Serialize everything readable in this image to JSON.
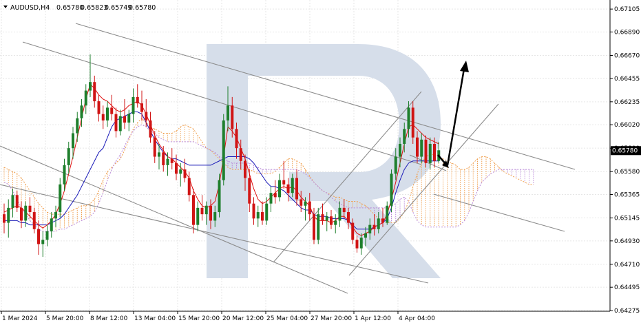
{
  "header": {
    "symbol": "AUDUSD,H4",
    "open": "0.65780",
    "high": "0.65823",
    "low": "0.65749",
    "close": "0.65780",
    "arrow_icon": "triangle-down-icon"
  },
  "colors": {
    "bull_candle": "#1e7f2c",
    "bear_candle": "#d01414",
    "tenkan": "#e01010",
    "kijun": "#1a1ab8",
    "cloud_bull": "#f0a050",
    "cloud_bear": "#b888d8",
    "trendline": "#8c8c8c",
    "forecast_arrow": "#000000",
    "price_tag_bg": "#000000",
    "watermark": "#d6deea"
  },
  "chart_data": {
    "type": "candlestick",
    "timeframe": "H4",
    "ylim": [
      0.6427,
      0.6719
    ],
    "y_ticks": [
      "0.67105",
      "0.66890",
      "0.66670",
      "0.66455",
      "0.66235",
      "0.66020",
      "0.65800",
      "0.65580",
      "0.65365",
      "0.65145",
      "0.64930",
      "0.64710",
      "0.64495",
      "0.64275"
    ],
    "x_ticks": [
      "1 Mar 2024",
      "5 Mar 20:00",
      "8 Mar 12:00",
      "13 Mar 04:00",
      "15 Mar 20:00",
      "20 Mar 12:00",
      "25 Mar 04:00",
      "27 Mar 20:00",
      "1 Apr 12:00",
      "4 Apr 04:00"
    ],
    "current_price": "0.65780",
    "grid": true,
    "candles": [
      [
        0.6518,
        0.6528,
        0.65,
        0.651
      ],
      [
        0.651,
        0.6532,
        0.6496,
        0.6524
      ],
      [
        0.6524,
        0.6542,
        0.6515,
        0.6536
      ],
      [
        0.6536,
        0.654,
        0.652,
        0.6524
      ],
      [
        0.6524,
        0.653,
        0.6505,
        0.6512
      ],
      [
        0.6512,
        0.653,
        0.6506,
        0.6526
      ],
      [
        0.6526,
        0.6534,
        0.6514,
        0.652
      ],
      [
        0.652,
        0.6524,
        0.65,
        0.6504
      ],
      [
        0.6504,
        0.6512,
        0.648,
        0.649
      ],
      [
        0.649,
        0.6502,
        0.6478,
        0.6494
      ],
      [
        0.6494,
        0.6508,
        0.6488,
        0.6502
      ],
      [
        0.6502,
        0.652,
        0.6496,
        0.6514
      ],
      [
        0.6514,
        0.6526,
        0.6506,
        0.652
      ],
      [
        0.652,
        0.6552,
        0.6515,
        0.6546
      ],
      [
        0.6546,
        0.657,
        0.654,
        0.6564
      ],
      [
        0.6564,
        0.6586,
        0.6556,
        0.658
      ],
      [
        0.658,
        0.66,
        0.657,
        0.6594
      ],
      [
        0.6594,
        0.6614,
        0.6586,
        0.6608
      ],
      [
        0.6608,
        0.6626,
        0.66,
        0.662
      ],
      [
        0.662,
        0.664,
        0.6612,
        0.6634
      ],
      [
        0.6634,
        0.6668,
        0.6628,
        0.6642
      ],
      [
        0.6642,
        0.6648,
        0.6618,
        0.6624
      ],
      [
        0.6624,
        0.663,
        0.6605,
        0.6612
      ],
      [
        0.6612,
        0.662,
        0.6598,
        0.6606
      ],
      [
        0.6606,
        0.6624,
        0.66,
        0.6618
      ],
      [
        0.6618,
        0.663,
        0.6606,
        0.6612
      ],
      [
        0.6612,
        0.6618,
        0.659,
        0.6596
      ],
      [
        0.6596,
        0.6616,
        0.6592,
        0.661
      ],
      [
        0.661,
        0.6626,
        0.6598,
        0.6604
      ],
      [
        0.6604,
        0.6616,
        0.6596,
        0.6612
      ],
      [
        0.6612,
        0.6636,
        0.6604,
        0.6628
      ],
      [
        0.6628,
        0.664,
        0.6618,
        0.6622
      ],
      [
        0.6622,
        0.6634,
        0.6606,
        0.6614
      ],
      [
        0.6614,
        0.6626,
        0.66,
        0.6606
      ],
      [
        0.6606,
        0.6614,
        0.6585,
        0.659
      ],
      [
        0.659,
        0.6596,
        0.6566,
        0.6572
      ],
      [
        0.6572,
        0.6584,
        0.656,
        0.6576
      ],
      [
        0.6576,
        0.6582,
        0.6558,
        0.6564
      ],
      [
        0.6564,
        0.6576,
        0.6554,
        0.657
      ],
      [
        0.657,
        0.658,
        0.656,
        0.6566
      ],
      [
        0.6566,
        0.6574,
        0.655,
        0.6556
      ],
      [
        0.6556,
        0.6566,
        0.6544,
        0.656
      ],
      [
        0.656,
        0.657,
        0.6548,
        0.6552
      ],
      [
        0.6552,
        0.6558,
        0.653,
        0.6536
      ],
      [
        0.6536,
        0.6542,
        0.65,
        0.6508
      ],
      [
        0.6508,
        0.653,
        0.6502,
        0.6524
      ],
      [
        0.6524,
        0.6536,
        0.6512,
        0.6518
      ],
      [
        0.6518,
        0.653,
        0.6508,
        0.6526
      ],
      [
        0.6526,
        0.6532,
        0.6504,
        0.6512
      ],
      [
        0.6512,
        0.6526,
        0.6506,
        0.652
      ],
      [
        0.652,
        0.6556,
        0.6515,
        0.655
      ],
      [
        0.655,
        0.6612,
        0.6545,
        0.6606
      ],
      [
        0.6606,
        0.6638,
        0.6596,
        0.662
      ],
      [
        0.662,
        0.6628,
        0.659,
        0.6598
      ],
      [
        0.6598,
        0.6604,
        0.657,
        0.658
      ],
      [
        0.658,
        0.6588,
        0.656,
        0.6568
      ],
      [
        0.6568,
        0.6574,
        0.654,
        0.6552
      ],
      [
        0.6552,
        0.656,
        0.652,
        0.6528
      ],
      [
        0.6528,
        0.6534,
        0.6508,
        0.6514
      ],
      [
        0.6514,
        0.6526,
        0.6506,
        0.652
      ],
      [
        0.652,
        0.653,
        0.6508,
        0.6512
      ],
      [
        0.6512,
        0.6534,
        0.6508,
        0.6528
      ],
      [
        0.6528,
        0.6544,
        0.652,
        0.6538
      ],
      [
        0.6538,
        0.655,
        0.6528,
        0.6534
      ],
      [
        0.6534,
        0.6556,
        0.653,
        0.655
      ],
      [
        0.655,
        0.6568,
        0.6542,
        0.6546
      ],
      [
        0.6546,
        0.6552,
        0.653,
        0.6538
      ],
      [
        0.6538,
        0.6556,
        0.6534,
        0.6552
      ],
      [
        0.6552,
        0.656,
        0.6526,
        0.6532
      ],
      [
        0.6532,
        0.654,
        0.652,
        0.6526
      ],
      [
        0.6526,
        0.6534,
        0.6512,
        0.653
      ],
      [
        0.653,
        0.6538,
        0.6512,
        0.6518
      ],
      [
        0.6518,
        0.6524,
        0.649,
        0.6494
      ],
      [
        0.6494,
        0.6524,
        0.649,
        0.6518
      ],
      [
        0.6518,
        0.6528,
        0.6508,
        0.6512
      ],
      [
        0.6512,
        0.652,
        0.6502,
        0.6516
      ],
      [
        0.6516,
        0.6522,
        0.6504,
        0.6508
      ],
      [
        0.6508,
        0.6518,
        0.65,
        0.6512
      ],
      [
        0.6512,
        0.653,
        0.6506,
        0.6524
      ],
      [
        0.6524,
        0.6532,
        0.6514,
        0.652
      ],
      [
        0.652,
        0.6524,
        0.6504,
        0.651
      ],
      [
        0.651,
        0.6514,
        0.649,
        0.6494
      ],
      [
        0.6494,
        0.6498,
        0.6482,
        0.6486
      ],
      [
        0.6486,
        0.65,
        0.648,
        0.6496
      ],
      [
        0.6496,
        0.6506,
        0.6488,
        0.65
      ],
      [
        0.65,
        0.6514,
        0.6494,
        0.6508
      ],
      [
        0.6508,
        0.6518,
        0.6498,
        0.6504
      ],
      [
        0.6504,
        0.652,
        0.65,
        0.6514
      ],
      [
        0.6514,
        0.6524,
        0.6506,
        0.651
      ],
      [
        0.651,
        0.653,
        0.6508,
        0.6526
      ],
      [
        0.6526,
        0.656,
        0.652,
        0.6556
      ],
      [
        0.6556,
        0.658,
        0.655,
        0.6572
      ],
      [
        0.6572,
        0.659,
        0.6562,
        0.6584
      ],
      [
        0.6584,
        0.6604,
        0.6576,
        0.6598
      ],
      [
        0.6598,
        0.6624,
        0.659,
        0.6618
      ],
      [
        0.6618,
        0.6624,
        0.6584,
        0.659
      ],
      [
        0.659,
        0.6596,
        0.6566,
        0.6572
      ],
      [
        0.6572,
        0.6594,
        0.6566,
        0.6588
      ],
      [
        0.6588,
        0.6592,
        0.6562,
        0.6566
      ],
      [
        0.6566,
        0.659,
        0.656,
        0.6584
      ],
      [
        0.6584,
        0.659,
        0.6562,
        0.6568
      ],
      [
        0.6568,
        0.6586,
        0.6566,
        0.6578
      ]
    ],
    "tenkan": [
      0.652,
      0.6522,
      0.6524,
      0.6526,
      0.6524,
      0.652,
      0.6516,
      0.6512,
      0.6508,
      0.6505,
      0.6508,
      0.6512,
      0.6518,
      0.6528,
      0.654,
      0.6556,
      0.6572,
      0.659,
      0.6608,
      0.6626,
      0.664,
      0.6636,
      0.663,
      0.6626,
      0.6624,
      0.662,
      0.6616,
      0.6614,
      0.6616,
      0.662,
      0.6622,
      0.6624,
      0.662,
      0.6612,
      0.6602,
      0.6592,
      0.6584,
      0.6578,
      0.6572,
      0.657,
      0.6566,
      0.6562,
      0.6558,
      0.6552,
      0.654,
      0.6532,
      0.6526,
      0.6524,
      0.6526,
      0.653,
      0.6546,
      0.6572,
      0.66,
      0.6596,
      0.659,
      0.658,
      0.657,
      0.6556,
      0.6542,
      0.6532,
      0.6528,
      0.653,
      0.6534,
      0.6538,
      0.6542,
      0.6544,
      0.6542,
      0.6544,
      0.654,
      0.6534,
      0.653,
      0.6526,
      0.6516,
      0.6512,
      0.6512,
      0.6512,
      0.651,
      0.6512,
      0.6516,
      0.6516,
      0.6512,
      0.6506,
      0.65,
      0.6498,
      0.65,
      0.6502,
      0.6506,
      0.6508,
      0.651,
      0.6518,
      0.6532,
      0.6548,
      0.6566,
      0.6584,
      0.66,
      0.6602,
      0.6598,
      0.6594,
      0.659,
      0.6588,
      0.6586,
      0.6584
    ],
    "kijun": [
      0.6512,
      0.6512,
      0.6512,
      0.6512,
      0.651,
      0.651,
      0.6508,
      0.6508,
      0.6508,
      0.6508,
      0.6508,
      0.651,
      0.6512,
      0.6514,
      0.6518,
      0.6524,
      0.653,
      0.6536,
      0.6544,
      0.6552,
      0.656,
      0.6568,
      0.6576,
      0.658,
      0.659,
      0.66,
      0.6606,
      0.6608,
      0.661,
      0.6612,
      0.6614,
      0.6614,
      0.6612,
      0.6604,
      0.6596,
      0.6588,
      0.6582,
      0.6576,
      0.6572,
      0.657,
      0.657,
      0.6568,
      0.6566,
      0.6564,
      0.6564,
      0.6564,
      0.6564,
      0.6564,
      0.6564,
      0.6566,
      0.6568,
      0.657,
      0.6572,
      0.6572,
      0.6572,
      0.6572,
      0.6572,
      0.657,
      0.6566,
      0.656,
      0.6554,
      0.6548,
      0.6544,
      0.6544,
      0.6542,
      0.654,
      0.6536,
      0.6532,
      0.6528,
      0.6524,
      0.6522,
      0.6522,
      0.6518,
      0.6516,
      0.6516,
      0.6516,
      0.6514,
      0.6514,
      0.6514,
      0.6514,
      0.6512,
      0.6508,
      0.6504,
      0.6504,
      0.6504,
      0.6504,
      0.6506,
      0.6508,
      0.651,
      0.6514,
      0.6524,
      0.6538,
      0.655,
      0.656,
      0.6566,
      0.6568,
      0.6568,
      0.6568,
      0.6568,
      0.6568,
      0.6568,
      0.6568
    ],
    "cloud_spanA": [
      0.6562,
      0.656,
      0.6558,
      0.6556,
      0.6552,
      0.6546,
      0.654,
      0.6534,
      0.6528,
      0.6524,
      0.652,
      0.6518,
      0.6518,
      0.6518,
      0.6518,
      0.652,
      0.6522,
      0.6524,
      0.6526,
      0.6526,
      0.6528,
      0.6532,
      0.654,
      0.655,
      0.6558,
      0.6562,
      0.6566,
      0.657,
      0.6578,
      0.6588,
      0.6598,
      0.6604,
      0.6608,
      0.6604,
      0.66,
      0.6598,
      0.6596,
      0.6594,
      0.6594,
      0.6594,
      0.6596,
      0.66,
      0.6602,
      0.66,
      0.6598,
      0.6592,
      0.6586,
      0.658,
      0.6578,
      0.6574,
      0.657,
      0.6566,
      0.6562,
      0.656,
      0.656,
      0.656,
      0.656,
      0.656,
      0.6558,
      0.6556,
      0.6556,
      0.6556,
      0.6556,
      0.6558,
      0.6562,
      0.6566,
      0.657,
      0.657,
      0.6568,
      0.6566,
      0.656,
      0.6554,
      0.6548,
      0.6544,
      0.654,
      0.6538,
      0.6536,
      0.6534,
      0.6534,
      0.6532,
      0.653,
      0.653,
      0.653,
      0.6528,
      0.6526,
      0.6522,
      0.6518,
      0.6514,
      0.6512,
      0.651,
      0.651,
      0.651,
      0.6514,
      0.652,
      0.653,
      0.6544,
      0.6556,
      0.6566,
      0.6572,
      0.6574,
      0.6574,
      0.6572,
      0.657,
      0.6568,
      0.6566,
      0.6564,
      0.656,
      0.656,
      0.6562,
      0.6566,
      0.657,
      0.6572,
      0.6572,
      0.657,
      0.6566,
      0.6562,
      0.6558,
      0.6556,
      0.6554,
      0.6552,
      0.655,
      0.6548,
      0.6546,
      0.6546
    ],
    "cloud_spanB": [
      0.6548,
      0.6546,
      0.654,
      0.6532,
      0.6524,
      0.6518,
      0.6512,
      0.6508,
      0.6504,
      0.6502,
      0.6502,
      0.6502,
      0.6502,
      0.6504,
      0.6504,
      0.6506,
      0.6508,
      0.651,
      0.6512,
      0.6514,
      0.6516,
      0.652,
      0.6528,
      0.6538,
      0.655,
      0.656,
      0.6568,
      0.6574,
      0.6582,
      0.659,
      0.6596,
      0.66,
      0.6602,
      0.66,
      0.6596,
      0.6594,
      0.659,
      0.6588,
      0.6586,
      0.6586,
      0.6586,
      0.6586,
      0.6586,
      0.6586,
      0.6586,
      0.6584,
      0.6582,
      0.658,
      0.6578,
      0.6576,
      0.6572,
      0.657,
      0.6568,
      0.6566,
      0.6566,
      0.6566,
      0.6566,
      0.6566,
      0.6564,
      0.6562,
      0.656,
      0.656,
      0.656,
      0.656,
      0.656,
      0.656,
      0.656,
      0.656,
      0.656,
      0.6558,
      0.6556,
      0.6552,
      0.6548,
      0.6544,
      0.654,
      0.6538,
      0.6534,
      0.653,
      0.6528,
      0.6526,
      0.6524,
      0.6524,
      0.6524,
      0.6524,
      0.6524,
      0.6524,
      0.6524,
      0.6524,
      0.6524,
      0.6524,
      0.6526,
      0.6528,
      0.6532,
      0.6534,
      0.653,
      0.652,
      0.6512,
      0.6508,
      0.6506,
      0.6506,
      0.6506,
      0.6506,
      0.6506,
      0.6506,
      0.6506,
      0.6506,
      0.6508,
      0.6512,
      0.652,
      0.653,
      0.654,
      0.6548,
      0.6552,
      0.6556,
      0.6558,
      0.656,
      0.656,
      0.656,
      0.656,
      0.656,
      0.656,
      0.656,
      0.656,
      0.656
    ]
  }
}
